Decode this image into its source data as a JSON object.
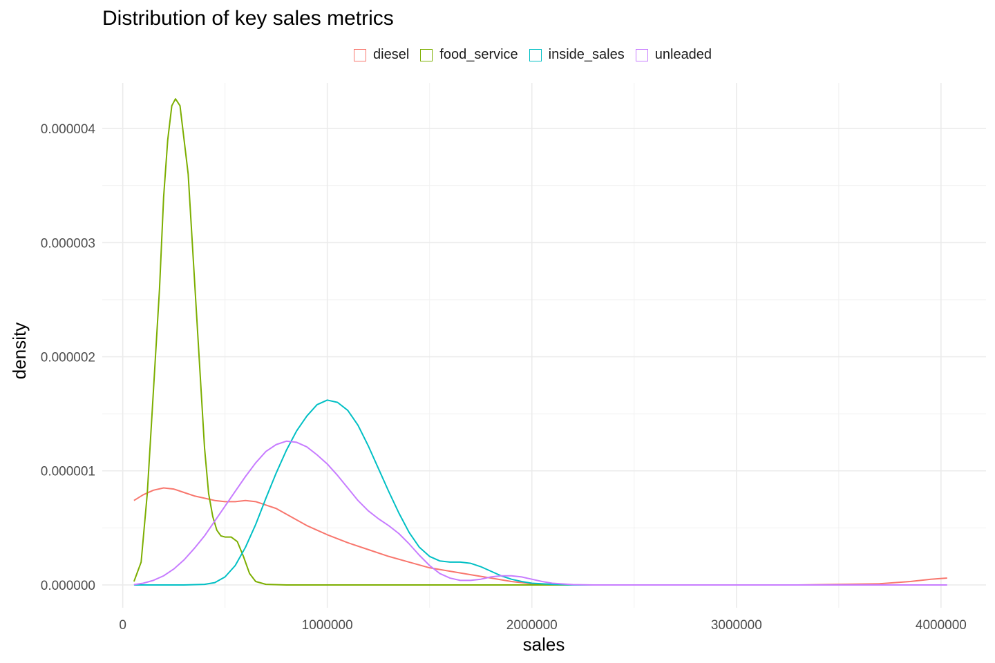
{
  "chart_data": {
    "type": "line",
    "subtype": "density",
    "title": "Distribution of key sales metrics",
    "xlabel": "sales",
    "ylabel": "density",
    "xlim": [
      -100000,
      4220000
    ],
    "ylim": [
      -2e-07,
      4.4e-06
    ],
    "x_ticks": [
      0,
      1000000,
      2000000,
      3000000,
      4000000
    ],
    "x_tick_labels": [
      "0",
      "1000000",
      "2000000",
      "3000000",
      "4000000"
    ],
    "y_ticks": [
      0,
      1e-06,
      2e-06,
      3e-06,
      4e-06
    ],
    "y_tick_labels": [
      "0.000000",
      "0.000001",
      "0.000002",
      "0.000003",
      "0.000004"
    ],
    "grid": true,
    "legend_position": "top",
    "series": [
      {
        "name": "diesel",
        "color": "#F8766D",
        "points": [
          [
            55000,
            7.4e-07
          ],
          [
            100000,
            7.9e-07
          ],
          [
            150000,
            8.3e-07
          ],
          [
            200000,
            8.5e-07
          ],
          [
            250000,
            8.4e-07
          ],
          [
            300000,
            8.1e-07
          ],
          [
            350000,
            7.8e-07
          ],
          [
            400000,
            7.6e-07
          ],
          [
            450000,
            7.4e-07
          ],
          [
            500000,
            7.3e-07
          ],
          [
            550000,
            7.3e-07
          ],
          [
            600000,
            7.4e-07
          ],
          [
            650000,
            7.3e-07
          ],
          [
            700000,
            7e-07
          ],
          [
            750000,
            6.7e-07
          ],
          [
            800000,
            6.2e-07
          ],
          [
            850000,
            5.7e-07
          ],
          [
            900000,
            5.2e-07
          ],
          [
            950000,
            4.8e-07
          ],
          [
            1000000,
            4.4e-07
          ],
          [
            1100000,
            3.7e-07
          ],
          [
            1200000,
            3.1e-07
          ],
          [
            1300000,
            2.5e-07
          ],
          [
            1400000,
            2e-07
          ],
          [
            1500000,
            1.5e-07
          ],
          [
            1600000,
            1.2e-07
          ],
          [
            1700000,
            9e-08
          ],
          [
            1800000,
            6e-08
          ],
          [
            1900000,
            3e-08
          ],
          [
            2000000,
            1e-08
          ],
          [
            2100000,
            5e-09
          ],
          [
            2200000,
            0
          ],
          [
            2500000,
            0
          ],
          [
            3000000,
            0
          ],
          [
            3300000,
            0
          ],
          [
            3500000,
            5e-09
          ],
          [
            3700000,
            1e-08
          ],
          [
            3850000,
            3e-08
          ],
          [
            3950000,
            5e-08
          ],
          [
            4030000,
            6e-08
          ]
        ]
      },
      {
        "name": "food_service",
        "color": "#7CAE00",
        "points": [
          [
            55000,
            3e-08
          ],
          [
            90000,
            2e-07
          ],
          [
            120000,
            8e-07
          ],
          [
            150000,
            1.7e-06
          ],
          [
            180000,
            2.6e-06
          ],
          [
            200000,
            3.4e-06
          ],
          [
            220000,
            3.9e-06
          ],
          [
            240000,
            4.2e-06
          ],
          [
            258000,
            4.26e-06
          ],
          [
            280000,
            4.2e-06
          ],
          [
            300000,
            3.9e-06
          ],
          [
            320000,
            3.6e-06
          ],
          [
            340000,
            3e-06
          ],
          [
            360000,
            2.4e-06
          ],
          [
            380000,
            1.8e-06
          ],
          [
            400000,
            1.2e-06
          ],
          [
            420000,
            8e-07
          ],
          [
            440000,
            6e-07
          ],
          [
            460000,
            4.8e-07
          ],
          [
            480000,
            4.3e-07
          ],
          [
            500000,
            4.2e-07
          ],
          [
            530000,
            4.2e-07
          ],
          [
            560000,
            3.8e-07
          ],
          [
            590000,
            2.5e-07
          ],
          [
            620000,
            1e-07
          ],
          [
            650000,
            3e-08
          ],
          [
            700000,
            5e-09
          ],
          [
            800000,
            0
          ],
          [
            1000000,
            0
          ],
          [
            1500000,
            0
          ],
          [
            2000000,
            0
          ],
          [
            2300000,
            0
          ]
        ]
      },
      {
        "name": "inside_sales",
        "color": "#00BFC4",
        "points": [
          [
            55000,
            0
          ],
          [
            200000,
            0
          ],
          [
            300000,
            0
          ],
          [
            400000,
            5e-09
          ],
          [
            450000,
            2e-08
          ],
          [
            500000,
            7e-08
          ],
          [
            550000,
            1.7e-07
          ],
          [
            600000,
            3.3e-07
          ],
          [
            650000,
            5.3e-07
          ],
          [
            700000,
            7.6e-07
          ],
          [
            750000,
            9.8e-07
          ],
          [
            800000,
            1.18e-06
          ],
          [
            850000,
            1.35e-06
          ],
          [
            900000,
            1.48e-06
          ],
          [
            950000,
            1.58e-06
          ],
          [
            1000000,
            1.62e-06
          ],
          [
            1050000,
            1.6e-06
          ],
          [
            1100000,
            1.53e-06
          ],
          [
            1150000,
            1.4e-06
          ],
          [
            1200000,
            1.22e-06
          ],
          [
            1250000,
            1.02e-06
          ],
          [
            1300000,
            8.2e-07
          ],
          [
            1350000,
            6.3e-07
          ],
          [
            1400000,
            4.6e-07
          ],
          [
            1450000,
            3.3e-07
          ],
          [
            1500000,
            2.5e-07
          ],
          [
            1550000,
            2.1e-07
          ],
          [
            1600000,
            2e-07
          ],
          [
            1650000,
            2e-07
          ],
          [
            1700000,
            1.9e-07
          ],
          [
            1750000,
            1.6e-07
          ],
          [
            1800000,
            1.2e-07
          ],
          [
            1850000,
            8e-08
          ],
          [
            1900000,
            5e-08
          ],
          [
            1950000,
            3e-08
          ],
          [
            2000000,
            1.5e-08
          ],
          [
            2100000,
            5e-09
          ],
          [
            2200000,
            0
          ],
          [
            2300000,
            0
          ]
        ]
      },
      {
        "name": "unleaded",
        "color": "#C77CFF",
        "points": [
          [
            55000,
            3e-09
          ],
          [
            100000,
            1.5e-08
          ],
          [
            150000,
            4e-08
          ],
          [
            200000,
            8e-08
          ],
          [
            250000,
            1.4e-07
          ],
          [
            300000,
            2.2e-07
          ],
          [
            350000,
            3.2e-07
          ],
          [
            400000,
            4.3e-07
          ],
          [
            450000,
            5.6e-07
          ],
          [
            500000,
            6.9e-07
          ],
          [
            550000,
            8.2e-07
          ],
          [
            600000,
            9.5e-07
          ],
          [
            650000,
            1.07e-06
          ],
          [
            700000,
            1.17e-06
          ],
          [
            750000,
            1.23e-06
          ],
          [
            800000,
            1.26e-06
          ],
          [
            850000,
            1.25e-06
          ],
          [
            900000,
            1.21e-06
          ],
          [
            950000,
            1.14e-06
          ],
          [
            1000000,
            1.06e-06
          ],
          [
            1050000,
            9.6e-07
          ],
          [
            1100000,
            8.5e-07
          ],
          [
            1150000,
            7.4e-07
          ],
          [
            1200000,
            6.5e-07
          ],
          [
            1250000,
            5.8e-07
          ],
          [
            1300000,
            5.2e-07
          ],
          [
            1350000,
            4.5e-07
          ],
          [
            1400000,
            3.6e-07
          ],
          [
            1450000,
            2.6e-07
          ],
          [
            1500000,
            1.7e-07
          ],
          [
            1550000,
            1e-07
          ],
          [
            1600000,
            6e-08
          ],
          [
            1650000,
            4e-08
          ],
          [
            1700000,
            4e-08
          ],
          [
            1750000,
            5e-08
          ],
          [
            1800000,
            7e-08
          ],
          [
            1850000,
            8e-08
          ],
          [
            1900000,
            8e-08
          ],
          [
            1950000,
            7e-08
          ],
          [
            2000000,
            5e-08
          ],
          [
            2050000,
            3e-08
          ],
          [
            2100000,
            1.5e-08
          ],
          [
            2200000,
            3e-09
          ],
          [
            2300000,
            0
          ],
          [
            3000000,
            0
          ],
          [
            4030000,
            0
          ]
        ]
      }
    ]
  }
}
